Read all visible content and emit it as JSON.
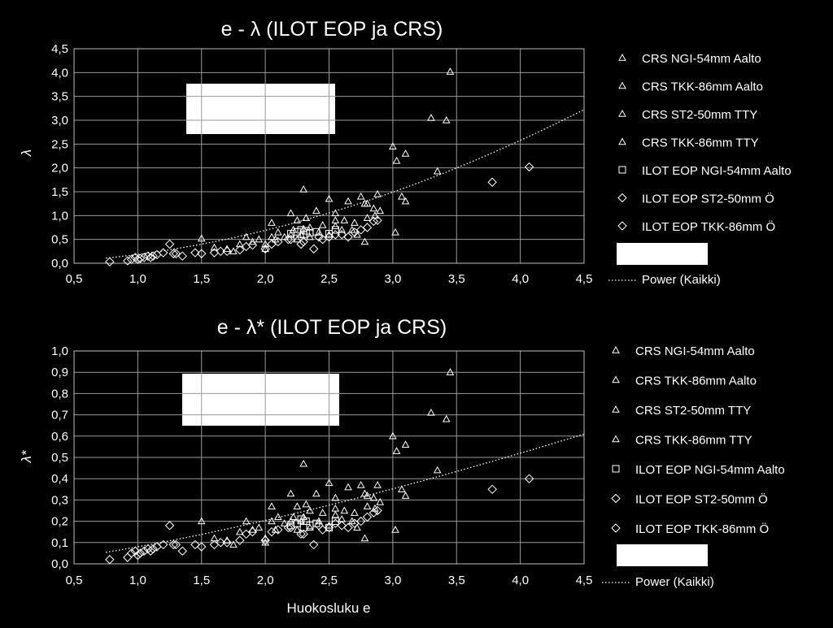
{
  "charts": [
    {
      "title": "e - λ (ILOT EOP ja CRS)",
      "ylabel": "λ",
      "xlabel": "",
      "xticks": [
        "0,5",
        "1,0",
        "1,5",
        "2,0",
        "2,5",
        "3,0",
        "3,5",
        "4,0",
        "4,5"
      ],
      "yticks": [
        "0,0",
        "0,5",
        "1,0",
        "1,5",
        "2,0",
        "2,5",
        "3,0",
        "3,5",
        "4,0",
        "4,5"
      ],
      "legend": [
        "CRS NGI-54mm Aalto",
        "CRS TKK-86mm Aalto",
        "CRS ST2-50mm TTY",
        "CRS TKK-86mm TTY",
        "ILOT EOP NGI-54mm Aalto",
        "ILOT EOP ST2-50mm Ö",
        "ILOT EOP TKK-86mm Ö"
      ],
      "legend_markers": [
        "triangle",
        "triangle",
        "triangle",
        "triangle",
        "square",
        "diamond",
        "diamond"
      ],
      "trend_label": "Power (Kaikki)"
    },
    {
      "title": "e - λ* (ILOT EOP ja CRS)",
      "ylabel": "λ*",
      "xlabel": "Huokosluku e",
      "xticks": [
        "0,5",
        "1,0",
        "1,5",
        "2,0",
        "2,5",
        "3,0",
        "3,5",
        "4,0",
        "4,5"
      ],
      "yticks": [
        "0,0",
        "0,1",
        "0,2",
        "0,3",
        "0,4",
        "0,5",
        "0,6",
        "0,7",
        "0,8",
        "0,9",
        "1,0"
      ],
      "legend": [
        "CRS NGI-54mm Aalto",
        "CRS TKK-86mm Aalto",
        "CRS ST2-50mm TTY",
        "CRS TKK-86mm TTY",
        "ILOT EOP NGI-54mm Aalto",
        "ILOT EOP ST2-50mm Ö",
        "ILOT EOP TKK-86mm Ö"
      ],
      "legend_markers": [
        "triangle",
        "triangle",
        "triangle",
        "triangle",
        "square",
        "diamond",
        "diamond"
      ],
      "trend_label": "Power (Kaikki)"
    }
  ],
  "chart_data": [
    {
      "type": "scatter",
      "title": "e - λ (ILOT EOP ja CRS)",
      "xlabel": "",
      "ylabel": "λ",
      "xlim": [
        0.5,
        4.5
      ],
      "ylim": [
        0.0,
        4.5
      ],
      "grid": true,
      "legend_position": "right",
      "background": "#000000",
      "marker_color": "#ffffff",
      "series": [
        {
          "name": "CRS NGI-54mm Aalto",
          "marker": "triangle",
          "points": [
            [
              1.5,
              0.52
            ],
            [
              1.6,
              0.33
            ],
            [
              1.85,
              0.55
            ],
            [
              2.0,
              0.4
            ],
            [
              2.05,
              0.55
            ],
            [
              2.1,
              0.65
            ],
            [
              2.2,
              1.05
            ],
            [
              2.25,
              0.9
            ],
            [
              2.3,
              1.55
            ],
            [
              2.35,
              0.75
            ],
            [
              2.4,
              1.1
            ],
            [
              2.5,
              1.35
            ],
            [
              2.55,
              1.05
            ],
            [
              2.65,
              1.3
            ],
            [
              2.75,
              1.4
            ],
            [
              2.8,
              0.95
            ],
            [
              2.85,
              1.15
            ],
            [
              2.88,
              1.45
            ],
            [
              3.0,
              2.45
            ],
            [
              3.02,
              0.65
            ],
            [
              3.1,
              2.3
            ],
            [
              3.3,
              3.05
            ],
            [
              3.35,
              1.93
            ],
            [
              3.42,
              3.0
            ],
            [
              3.45,
              4.02
            ]
          ]
        },
        {
          "name": "CRS TKK-86mm Aalto",
          "marker": "triangle",
          "points": [
            [
              1.8,
              0.4
            ],
            [
              1.9,
              0.45
            ],
            [
              2.05,
              0.85
            ],
            [
              2.15,
              0.55
            ],
            [
              2.22,
              0.7
            ],
            [
              2.28,
              0.6
            ],
            [
              2.32,
              0.95
            ],
            [
              2.45,
              0.8
            ],
            [
              2.55,
              0.9
            ],
            [
              2.6,
              0.7
            ],
            [
              2.7,
              0.85
            ],
            [
              2.78,
              1.25
            ],
            [
              2.9,
              1.1
            ],
            [
              3.03,
              2.15
            ],
            [
              3.07,
              1.4
            ]
          ]
        },
        {
          "name": "CRS ST2-50mm TTY",
          "marker": "triangle",
          "points": [
            [
              1.7,
              0.3
            ],
            [
              1.95,
              0.5
            ],
            [
              2.08,
              0.5
            ],
            [
              2.2,
              0.6
            ],
            [
              2.3,
              0.72
            ],
            [
              2.42,
              0.65
            ],
            [
              2.55,
              0.78
            ],
            [
              2.68,
              0.7
            ],
            [
              2.78,
              0.45
            ],
            [
              2.86,
              1.0
            ]
          ]
        },
        {
          "name": "CRS TKK-86mm TTY",
          "marker": "triangle",
          "points": [
            [
              1.75,
              0.25
            ],
            [
              2.0,
              0.3
            ],
            [
              2.25,
              0.5
            ],
            [
              2.35,
              0.55
            ],
            [
              2.5,
              0.6
            ],
            [
              2.62,
              0.9
            ],
            [
              2.72,
              0.6
            ],
            [
              2.8,
              1.25
            ],
            [
              3.1,
              1.3
            ]
          ]
        },
        {
          "name": "ILOT EOP NGI-54mm Aalto",
          "marker": "square",
          "points": [
            [
              2.2,
              0.62
            ],
            [
              2.25,
              0.66
            ],
            [
              2.28,
              0.7
            ],
            [
              2.3,
              0.6
            ],
            [
              2.32,
              0.68
            ],
            [
              2.35,
              0.64
            ],
            [
              2.4,
              0.66
            ],
            [
              2.5,
              0.62
            ],
            [
              2.55,
              0.7
            ]
          ]
        },
        {
          "name": "ILOT EOP ST2-50mm Ö",
          "marker": "diamond",
          "points": [
            [
              0.78,
              0.03
            ],
            [
              0.92,
              0.05
            ],
            [
              0.95,
              0.08
            ],
            [
              0.98,
              0.12
            ],
            [
              1.02,
              0.1
            ],
            [
              1.05,
              0.12
            ],
            [
              1.08,
              0.15
            ],
            [
              1.12,
              0.15
            ],
            [
              1.15,
              0.18
            ],
            [
              1.2,
              0.22
            ],
            [
              1.25,
              0.4
            ],
            [
              1.28,
              0.2
            ],
            [
              1.35,
              0.15
            ],
            [
              1.5,
              0.2
            ],
            [
              1.6,
              0.22
            ],
            [
              1.7,
              0.25
            ],
            [
              1.85,
              0.35
            ],
            [
              1.9,
              0.38
            ],
            [
              2.0,
              0.3
            ],
            [
              2.1,
              0.45
            ],
            [
              2.2,
              0.5
            ],
            [
              2.3,
              0.45
            ],
            [
              2.38,
              0.3
            ],
            [
              2.45,
              0.5
            ],
            [
              2.5,
              0.55
            ],
            [
              2.6,
              0.6
            ],
            [
              2.7,
              0.65
            ],
            [
              2.8,
              0.75
            ],
            [
              2.85,
              0.88
            ]
          ]
        },
        {
          "name": "ILOT EOP TKK-86mm Ö",
          "marker": "diamond",
          "points": [
            [
              1.0,
              0.08
            ],
            [
              1.1,
              0.12
            ],
            [
              1.3,
              0.2
            ],
            [
              1.45,
              0.22
            ],
            [
              1.65,
              0.25
            ],
            [
              1.8,
              0.28
            ],
            [
              2.05,
              0.4
            ],
            [
              2.18,
              0.5
            ],
            [
              2.28,
              0.4
            ],
            [
              2.42,
              0.55
            ],
            [
              2.55,
              0.6
            ],
            [
              2.65,
              0.55
            ],
            [
              2.75,
              0.7
            ],
            [
              2.88,
              0.9
            ],
            [
              3.78,
              1.7
            ],
            [
              4.07,
              2.02
            ]
          ]
        }
      ],
      "trendline": {
        "name": "Power (Kaikki)",
        "type": "power",
        "coef": 0.185,
        "exponent": 1.9,
        "style": "dotted"
      }
    },
    {
      "type": "scatter",
      "title": "e - λ* (ILOT EOP ja CRS)",
      "xlabel": "Huokosluku e",
      "ylabel": "λ*",
      "xlim": [
        0.5,
        4.5
      ],
      "ylim": [
        0.0,
        1.0
      ],
      "grid": true,
      "legend_position": "right",
      "background": "#000000",
      "marker_color": "#ffffff",
      "series": [
        {
          "name": "CRS NGI-54mm Aalto",
          "marker": "triangle",
          "points": [
            [
              1.5,
              0.2
            ],
            [
              1.6,
              0.12
            ],
            [
              1.85,
              0.2
            ],
            [
              2.0,
              0.12
            ],
            [
              2.05,
              0.2
            ],
            [
              2.1,
              0.22
            ],
            [
              2.2,
              0.33
            ],
            [
              2.25,
              0.27
            ],
            [
              2.3,
              0.47
            ],
            [
              2.35,
              0.25
            ],
            [
              2.4,
              0.33
            ],
            [
              2.5,
              0.38
            ],
            [
              2.55,
              0.31
            ],
            [
              2.65,
              0.36
            ],
            [
              2.75,
              0.37
            ],
            [
              2.8,
              0.27
            ],
            [
              2.85,
              0.31
            ],
            [
              2.88,
              0.37
            ],
            [
              3.0,
              0.6
            ],
            [
              3.02,
              0.16
            ],
            [
              3.1,
              0.56
            ],
            [
              3.3,
              0.71
            ],
            [
              3.35,
              0.44
            ],
            [
              3.42,
              0.68
            ],
            [
              3.45,
              0.9
            ]
          ]
        },
        {
          "name": "CRS TKK-86mm Aalto",
          "marker": "triangle",
          "points": [
            [
              1.8,
              0.15
            ],
            [
              1.9,
              0.16
            ],
            [
              2.05,
              0.27
            ],
            [
              2.15,
              0.19
            ],
            [
              2.22,
              0.22
            ],
            [
              2.28,
              0.2
            ],
            [
              2.32,
              0.28
            ],
            [
              2.45,
              0.24
            ],
            [
              2.55,
              0.26
            ],
            [
              2.6,
              0.21
            ],
            [
              2.7,
              0.24
            ],
            [
              2.78,
              0.33
            ],
            [
              2.9,
              0.29
            ],
            [
              3.03,
              0.53
            ],
            [
              3.07,
              0.35
            ]
          ]
        },
        {
          "name": "CRS ST2-50mm TTY",
          "marker": "triangle",
          "points": [
            [
              1.7,
              0.11
            ],
            [
              1.95,
              0.17
            ],
            [
              2.08,
              0.16
            ],
            [
              2.2,
              0.2
            ],
            [
              2.3,
              0.22
            ],
            [
              2.42,
              0.2
            ],
            [
              2.55,
              0.23
            ],
            [
              2.68,
              0.2
            ],
            [
              2.78,
              0.12
            ],
            [
              2.86,
              0.26
            ]
          ]
        },
        {
          "name": "CRS TKK-86mm TTY",
          "marker": "triangle",
          "points": [
            [
              1.75,
              0.09
            ],
            [
              2.0,
              0.1
            ],
            [
              2.25,
              0.16
            ],
            [
              2.35,
              0.17
            ],
            [
              2.5,
              0.18
            ],
            [
              2.62,
              0.25
            ],
            [
              2.72,
              0.17
            ],
            [
              2.8,
              0.32
            ],
            [
              3.1,
              0.32
            ]
          ]
        },
        {
          "name": "ILOT EOP NGI-54mm Aalto",
          "marker": "square",
          "points": [
            [
              2.2,
              0.18
            ],
            [
              2.25,
              0.19
            ],
            [
              2.28,
              0.21
            ],
            [
              2.3,
              0.17
            ],
            [
              2.32,
              0.2
            ],
            [
              2.35,
              0.18
            ],
            [
              2.4,
              0.19
            ],
            [
              2.5,
              0.17
            ],
            [
              2.55,
              0.2
            ]
          ]
        },
        {
          "name": "ILOT EOP ST2-50mm Ö",
          "marker": "diamond",
          "points": [
            [
              0.78,
              0.02
            ],
            [
              0.92,
              0.03
            ],
            [
              0.95,
              0.05
            ],
            [
              0.98,
              0.06
            ],
            [
              1.02,
              0.05
            ],
            [
              1.05,
              0.06
            ],
            [
              1.08,
              0.07
            ],
            [
              1.12,
              0.07
            ],
            [
              1.15,
              0.08
            ],
            [
              1.2,
              0.09
            ],
            [
              1.25,
              0.18
            ],
            [
              1.28,
              0.09
            ],
            [
              1.35,
              0.06
            ],
            [
              1.5,
              0.08
            ],
            [
              1.6,
              0.09
            ],
            [
              1.7,
              0.1
            ],
            [
              1.85,
              0.14
            ],
            [
              1.9,
              0.15
            ],
            [
              2.0,
              0.11
            ],
            [
              2.1,
              0.16
            ],
            [
              2.2,
              0.17
            ],
            [
              2.3,
              0.14
            ],
            [
              2.38,
              0.09
            ],
            [
              2.45,
              0.16
            ],
            [
              2.5,
              0.17
            ],
            [
              2.6,
              0.18
            ],
            [
              2.7,
              0.19
            ],
            [
              2.8,
              0.22
            ],
            [
              2.85,
              0.24
            ]
          ]
        },
        {
          "name": "ILOT EOP TKK-86mm Ö",
          "marker": "diamond",
          "points": [
            [
              1.0,
              0.04
            ],
            [
              1.1,
              0.06
            ],
            [
              1.3,
              0.09
            ],
            [
              1.45,
              0.09
            ],
            [
              1.65,
              0.1
            ],
            [
              1.8,
              0.11
            ],
            [
              2.05,
              0.15
            ],
            [
              2.18,
              0.17
            ],
            [
              2.28,
              0.14
            ],
            [
              2.42,
              0.18
            ],
            [
              2.55,
              0.19
            ],
            [
              2.65,
              0.17
            ],
            [
              2.75,
              0.2
            ],
            [
              2.88,
              0.25
            ],
            [
              3.78,
              0.35
            ],
            [
              4.07,
              0.4
            ]
          ]
        }
      ],
      "trendline": {
        "name": "Power (Kaikki)",
        "type": "power",
        "coef": 0.08,
        "exponent": 1.35,
        "style": "dotted"
      }
    }
  ]
}
